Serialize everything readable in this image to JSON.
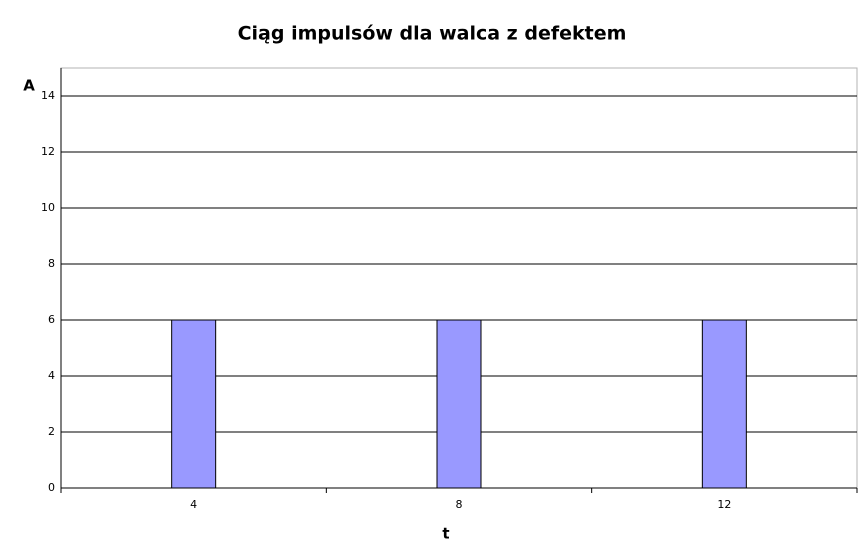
{
  "chart_data": {
    "type": "bar",
    "title": "Ciąg impulsów dla walca z defektem",
    "x_label": "t",
    "y_label": "A",
    "categories": [
      "4",
      "8",
      "12"
    ],
    "values": [
      6,
      6,
      6
    ],
    "color": "#9999ff",
    "ylim": [
      0,
      15
    ],
    "yticks": [
      0,
      2,
      4,
      6,
      8,
      10,
      12,
      14
    ],
    "grid": true
  }
}
